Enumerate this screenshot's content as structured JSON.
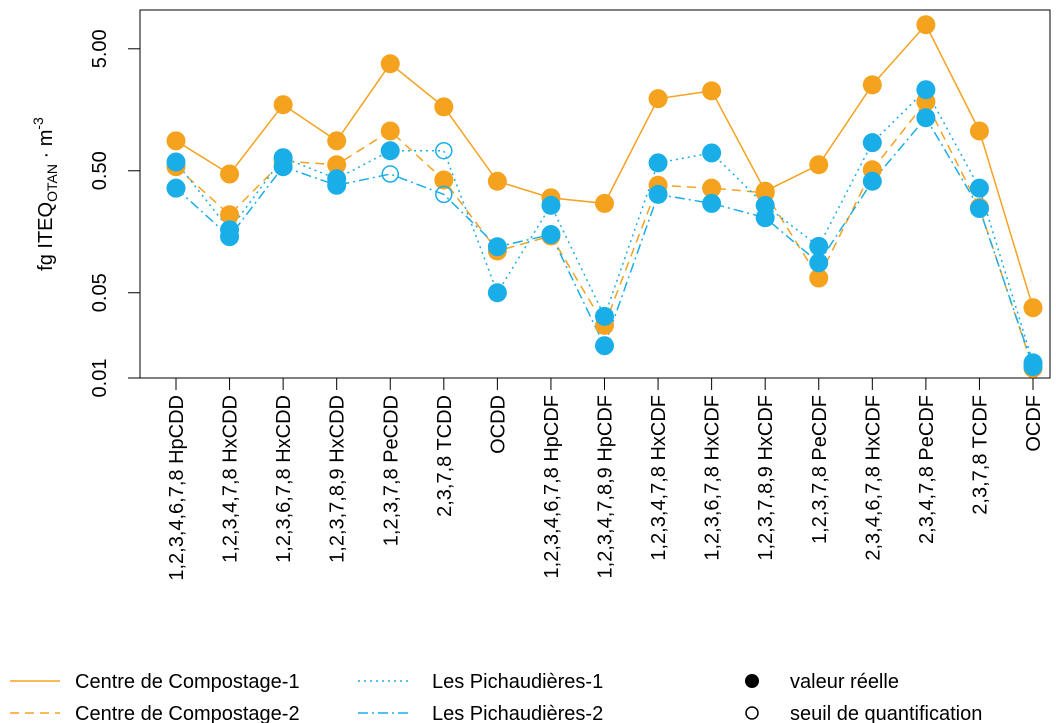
{
  "chart_data": {
    "type": "line",
    "log_y": true,
    "y_label": {
      "main": "fg ITEQ",
      "sub": "OTAN",
      "mid": " · m",
      "sup": "-3"
    },
    "categories": [
      "1,2,3,4,6,7,8 HpCDD",
      "1,2,3,4,7,8 HxCDD",
      "1,2,3,6,7,8 HxCDD",
      "1,2,3,7,8,9 HxCDD",
      "1,2,3,7,8 PeCDD",
      "2,3,7,8 TCDD",
      "OCDD",
      "1,2,3,4,6,7,8 HpCDF",
      "1,2,3,4,7,8,9 HpCDF",
      "1,2,3,4,7,8 HxCDF",
      "1,2,3,6,7,8 HxCDF",
      "1,2,3,7,8,9 HxCDF",
      "1,2,3,7,8 PeCDF",
      "2,3,4,6,7,8 HxCDF",
      "2,3,4,7,8 PeCDF",
      "2,3,7,8 TCDF",
      "OCDF"
    ],
    "series": [
      {
        "name": "Centre de Compostage-1",
        "color": "#f5a21f",
        "dash": "solid",
        "values": [
          0.88,
          0.47,
          1.74,
          0.88,
          3.77,
          1.67,
          0.41,
          0.3,
          0.27,
          1.95,
          2.26,
          0.34,
          0.56,
          2.53,
          7.87,
          1.06,
          0.0377
        ],
        "open": [
          false,
          false,
          false,
          false,
          false,
          false,
          false,
          false,
          false,
          false,
          false,
          false,
          false,
          false,
          false,
          false,
          false
        ]
      },
      {
        "name": "Centre de Compostage-2",
        "color": "#f5a21f",
        "dash": "dashed",
        "values": [
          0.54,
          0.218,
          0.6,
          0.56,
          1.06,
          0.42,
          0.11,
          0.146,
          0.027,
          0.38,
          0.36,
          0.33,
          0.066,
          0.51,
          1.84,
          0.25,
          0.012
        ],
        "open": [
          false,
          false,
          false,
          false,
          false,
          false,
          false,
          false,
          false,
          false,
          false,
          false,
          false,
          false,
          false,
          false,
          false
        ]
      },
      {
        "name": "Les Pichaudières-1",
        "color": "#1aaee8",
        "dash": "dotted",
        "values": [
          0.59,
          0.164,
          0.64,
          0.43,
          0.73,
          0.73,
          0.05,
          0.26,
          0.032,
          0.58,
          0.7,
          0.26,
          0.12,
          0.85,
          2.31,
          0.36,
          0.0133
        ],
        "open": [
          false,
          false,
          false,
          false,
          false,
          true,
          false,
          false,
          false,
          false,
          false,
          false,
          false,
          false,
          false,
          false,
          false
        ]
      },
      {
        "name": "Les Pichaudières-2",
        "color": "#1aaee8",
        "dash": "dashdot",
        "values": [
          0.36,
          0.144,
          0.54,
          0.38,
          0.47,
          0.32,
          0.119,
          0.15,
          0.0184,
          0.32,
          0.27,
          0.206,
          0.088,
          0.41,
          1.36,
          0.245,
          0.0124
        ],
        "open": [
          false,
          false,
          false,
          false,
          true,
          true,
          false,
          false,
          false,
          false,
          false,
          false,
          false,
          false,
          false,
          false,
          false
        ]
      }
    ],
    "ylim": [
      0.01,
      10.4
    ],
    "yticks": [
      0.01,
      0.05,
      {
        "value": 0.5,
        "label": "0.50"
      },
      {
        "value": 5,
        "label": "5.00"
      }
    ],
    "legend_markers": [
      "valeur réelle",
      "seuil de quantification"
    ]
  }
}
